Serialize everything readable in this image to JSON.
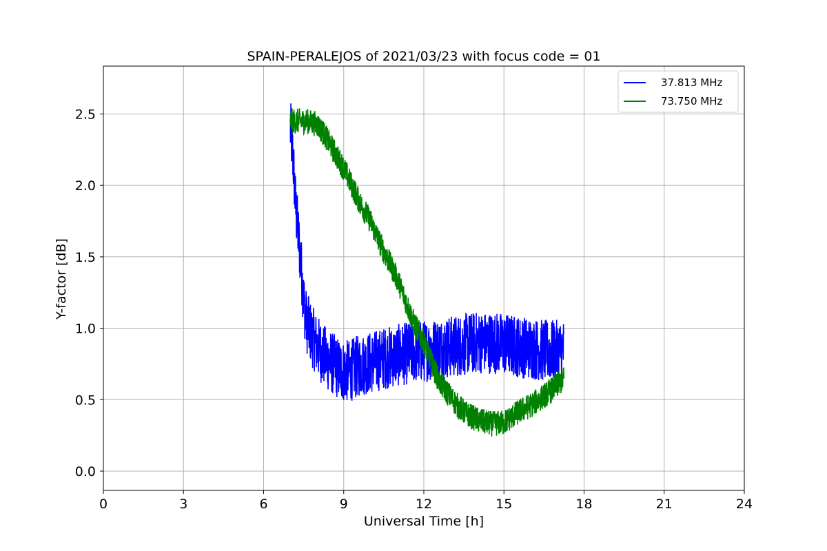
{
  "chart_data": {
    "type": "line",
    "title": "SPAIN-PERALEJOS of 2021/03/23 with focus code = 01",
    "xlabel": "Universal Time [h]",
    "ylabel": "Y-factor [dB]",
    "xlim": [
      0,
      24
    ],
    "ylim": [
      -0.135,
      2.835
    ],
    "xticks": [
      0,
      3,
      6,
      9,
      12,
      15,
      18,
      21,
      24
    ],
    "xtick_labels": [
      "0",
      "3",
      "6",
      "9",
      "12",
      "15",
      "18",
      "21",
      "24"
    ],
    "yticks": [
      0.0,
      0.5,
      1.0,
      1.5,
      2.0,
      2.5
    ],
    "ytick_labels": [
      "0.0",
      "0.5",
      "1.0",
      "1.5",
      "2.0",
      "2.5"
    ],
    "grid": true,
    "legend": "top-right",
    "series": [
      {
        "name": "37.813 MHz",
        "color": "#0000ff",
        "x": [
          7.0,
          7.1,
          7.2,
          7.3,
          7.4,
          7.5,
          7.6,
          7.8,
          8.0,
          8.2,
          8.4,
          8.6,
          8.8,
          9.0,
          9.2,
          9.4,
          9.6,
          9.8,
          10.0,
          10.2,
          10.5,
          10.8,
          11.0,
          11.3,
          11.6,
          12.0,
          12.3,
          12.6,
          13.0,
          13.3,
          13.6,
          14.0,
          14.3,
          14.6,
          15.0,
          15.3,
          15.6,
          16.0,
          16.3,
          16.6,
          17.0,
          17.25
        ],
        "y": [
          2.4,
          2.2,
          1.85,
          1.65,
          1.45,
          1.2,
          1.05,
          0.95,
          0.88,
          0.82,
          0.78,
          0.75,
          0.72,
          0.7,
          0.7,
          0.72,
          0.74,
          0.75,
          0.76,
          0.77,
          0.79,
          0.8,
          0.81,
          0.82,
          0.83,
          0.84,
          0.85,
          0.86,
          0.87,
          0.88,
          0.89,
          0.9,
          0.9,
          0.9,
          0.89,
          0.88,
          0.87,
          0.86,
          0.85,
          0.84,
          0.84,
          0.85
        ],
        "noise": 0.22
      },
      {
        "name": "73.750 MHz",
        "color": "#008000",
        "x": [
          7.0,
          7.3,
          7.6,
          8.0,
          8.3,
          8.6,
          9.0,
          9.3,
          9.6,
          10.0,
          10.3,
          10.6,
          11.0,
          11.3,
          11.6,
          12.0,
          12.3,
          12.6,
          13.0,
          13.3,
          13.6,
          14.0,
          14.3,
          14.6,
          15.0,
          15.3,
          15.6,
          16.0,
          16.3,
          16.6,
          17.0,
          17.25
        ],
        "y": [
          2.45,
          2.45,
          2.45,
          2.43,
          2.35,
          2.25,
          2.12,
          2.0,
          1.88,
          1.75,
          1.62,
          1.5,
          1.35,
          1.2,
          1.05,
          0.9,
          0.75,
          0.62,
          0.52,
          0.45,
          0.4,
          0.36,
          0.34,
          0.33,
          0.34,
          0.38,
          0.42,
          0.46,
          0.5,
          0.54,
          0.6,
          0.65
        ],
        "noise": 0.09
      }
    ]
  }
}
